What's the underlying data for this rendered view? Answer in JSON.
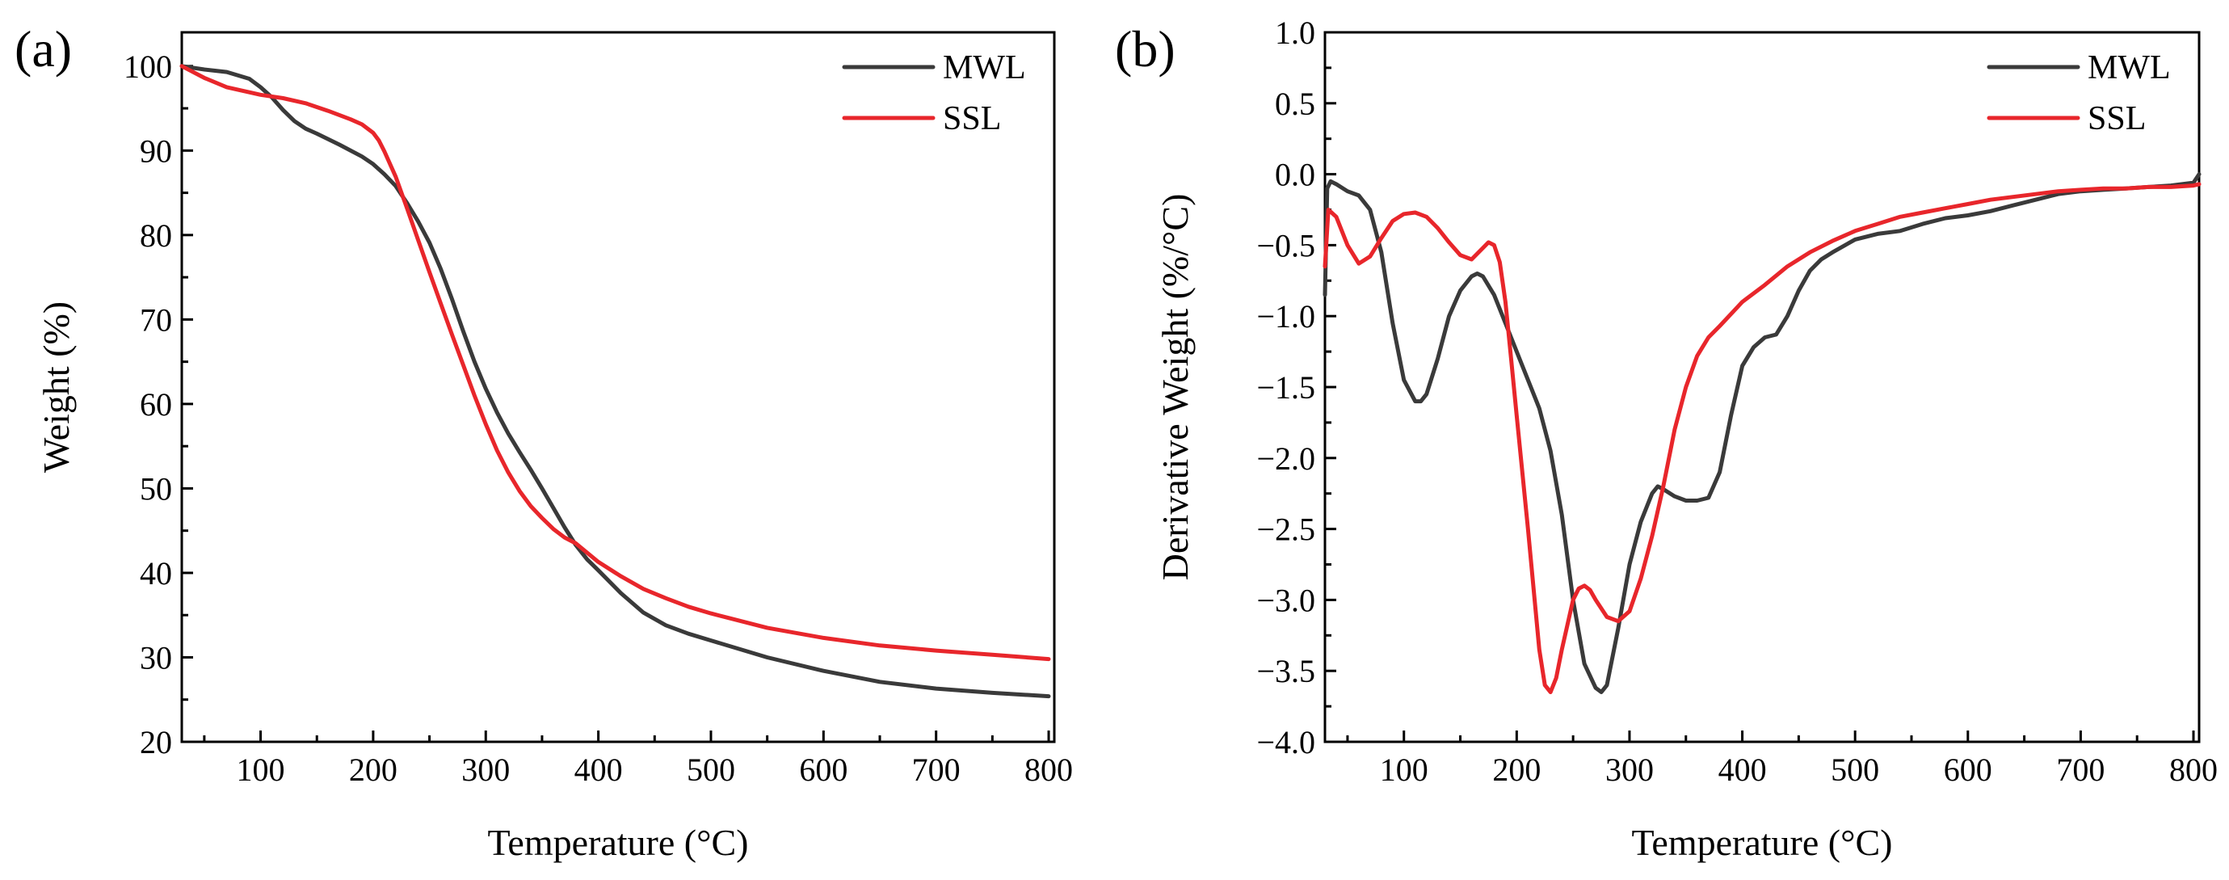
{
  "chart_data": [
    {
      "panel_label": "(a)",
      "type": "line",
      "xlabel": "Temperature (°C)",
      "ylabel": "Weight (%)",
      "xlim": [
        30,
        805
      ],
      "ylim": [
        20,
        104
      ],
      "xticks": [
        100,
        200,
        300,
        400,
        500,
        600,
        700,
        800
      ],
      "yticks": [
        20,
        30,
        40,
        50,
        60,
        70,
        80,
        90,
        100
      ],
      "legend": "top-right",
      "series": [
        {
          "name": "MWL",
          "color": "#3a3a3a",
          "x": [
            30,
            50,
            70,
            90,
            100,
            110,
            120,
            130,
            140,
            150,
            170,
            190,
            200,
            210,
            220,
            230,
            240,
            250,
            260,
            270,
            280,
            290,
            300,
            310,
            320,
            330,
            340,
            350,
            360,
            370,
            380,
            390,
            400,
            420,
            440,
            460,
            480,
            500,
            550,
            600,
            650,
            700,
            750,
            800
          ],
          "values": [
            100,
            99.6,
            99.3,
            98.5,
            97.5,
            96.3,
            94.8,
            93.5,
            92.6,
            92.0,
            90.7,
            89.3,
            88.4,
            87.2,
            85.8,
            83.8,
            81.6,
            79.1,
            76.0,
            72.4,
            68.6,
            65.0,
            61.8,
            59.0,
            56.5,
            54.3,
            52.2,
            50.0,
            47.7,
            45.4,
            43.3,
            41.6,
            40.3,
            37.6,
            35.3,
            33.8,
            32.8,
            32.0,
            30.0,
            28.4,
            27.1,
            26.3,
            25.8,
            25.4
          ]
        },
        {
          "name": "SSL",
          "color": "#e8262b",
          "x": [
            30,
            50,
            70,
            90,
            100,
            120,
            140,
            160,
            180,
            190,
            200,
            205,
            210,
            220,
            230,
            240,
            250,
            260,
            270,
            280,
            290,
            300,
            310,
            320,
            330,
            340,
            350,
            360,
            370,
            380,
            400,
            420,
            440,
            460,
            480,
            500,
            550,
            600,
            650,
            700,
            750,
            800
          ],
          "values": [
            100,
            98.6,
            97.5,
            96.9,
            96.6,
            96.2,
            95.6,
            94.7,
            93.7,
            93.1,
            92.1,
            91.2,
            89.9,
            86.9,
            83.2,
            79.4,
            75.6,
            71.9,
            68.2,
            64.6,
            61.0,
            57.6,
            54.5,
            51.9,
            49.7,
            47.9,
            46.5,
            45.2,
            44.2,
            43.5,
            41.3,
            39.6,
            38.1,
            37.0,
            36.0,
            35.2,
            33.5,
            32.3,
            31.4,
            30.8,
            30.3,
            29.8
          ]
        }
      ]
    },
    {
      "panel_label": "(b)",
      "type": "line",
      "xlabel": "Temperature (°C)",
      "ylabel": "Derivative Weight (%/°C)",
      "xlim": [
        30,
        805
      ],
      "ylim": [
        -4.0,
        1.0
      ],
      "xticks": [
        100,
        200,
        300,
        400,
        500,
        600,
        700,
        800
      ],
      "yticks": [
        -4.0,
        -3.5,
        -3.0,
        -2.5,
        -2.0,
        -1.5,
        -1.0,
        -0.5,
        0.0,
        0.5,
        1.0
      ],
      "ytick_labels": [
        "−4.0",
        "−3.5",
        "−3.0",
        "−2.5",
        "−2.0",
        "−1.5",
        "−1.0",
        "−0.5",
        "0.0",
        "0.5",
        "1.0"
      ],
      "legend": "top-right",
      "series": [
        {
          "name": "MWL",
          "color": "#3a3a3a",
          "x": [
            30,
            32,
            35,
            40,
            50,
            60,
            70,
            80,
            90,
            100,
            110,
            115,
            120,
            130,
            140,
            150,
            160,
            165,
            170,
            180,
            190,
            200,
            210,
            220,
            230,
            240,
            250,
            260,
            270,
            275,
            280,
            290,
            300,
            310,
            320,
            325,
            330,
            340,
            350,
            360,
            370,
            380,
            390,
            400,
            410,
            420,
            430,
            440,
            450,
            460,
            470,
            480,
            500,
            520,
            540,
            560,
            580,
            600,
            620,
            640,
            660,
            680,
            700,
            720,
            740,
            760,
            780,
            800,
            805
          ],
          "values": [
            -0.85,
            -0.1,
            -0.05,
            -0.07,
            -0.12,
            -0.15,
            -0.25,
            -0.55,
            -1.05,
            -1.45,
            -1.6,
            -1.6,
            -1.55,
            -1.3,
            -1.0,
            -0.82,
            -0.72,
            -0.7,
            -0.72,
            -0.85,
            -1.05,
            -1.25,
            -1.45,
            -1.65,
            -1.95,
            -2.4,
            -3.0,
            -3.45,
            -3.62,
            -3.65,
            -3.6,
            -3.2,
            -2.75,
            -2.45,
            -2.25,
            -2.2,
            -2.22,
            -2.27,
            -2.3,
            -2.3,
            -2.28,
            -2.1,
            -1.7,
            -1.35,
            -1.22,
            -1.15,
            -1.13,
            -1.0,
            -0.82,
            -0.68,
            -0.6,
            -0.55,
            -0.46,
            -0.42,
            -0.4,
            -0.35,
            -0.31,
            -0.29,
            -0.26,
            -0.22,
            -0.18,
            -0.14,
            -0.12,
            -0.11,
            -0.1,
            -0.09,
            -0.08,
            -0.06,
            0.0
          ]
        },
        {
          "name": "SSL",
          "color": "#e8262b",
          "x": [
            30,
            33,
            40,
            50,
            60,
            70,
            80,
            90,
            100,
            110,
            120,
            130,
            140,
            150,
            160,
            170,
            175,
            180,
            185,
            190,
            195,
            200,
            210,
            220,
            225,
            230,
            235,
            240,
            250,
            255,
            260,
            265,
            270,
            280,
            290,
            300,
            310,
            320,
            330,
            340,
            350,
            360,
            370,
            380,
            400,
            420,
            440,
            460,
            480,
            500,
            520,
            540,
            560,
            580,
            600,
            620,
            640,
            660,
            680,
            700,
            720,
            740,
            760,
            780,
            800,
            805
          ],
          "values": [
            -0.65,
            -0.25,
            -0.3,
            -0.5,
            -0.63,
            -0.58,
            -0.45,
            -0.33,
            -0.28,
            -0.27,
            -0.3,
            -0.38,
            -0.48,
            -0.57,
            -0.6,
            -0.52,
            -0.48,
            -0.5,
            -0.62,
            -0.9,
            -1.3,
            -1.7,
            -2.5,
            -3.35,
            -3.6,
            -3.65,
            -3.55,
            -3.35,
            -3.0,
            -2.92,
            -2.9,
            -2.93,
            -3.0,
            -3.12,
            -3.15,
            -3.08,
            -2.85,
            -2.55,
            -2.2,
            -1.8,
            -1.5,
            -1.28,
            -1.15,
            -1.07,
            -0.9,
            -0.78,
            -0.65,
            -0.55,
            -0.47,
            -0.4,
            -0.35,
            -0.3,
            -0.27,
            -0.24,
            -0.21,
            -0.18,
            -0.16,
            -0.14,
            -0.12,
            -0.11,
            -0.1,
            -0.1,
            -0.09,
            -0.09,
            -0.08,
            -0.07
          ]
        }
      ]
    }
  ]
}
